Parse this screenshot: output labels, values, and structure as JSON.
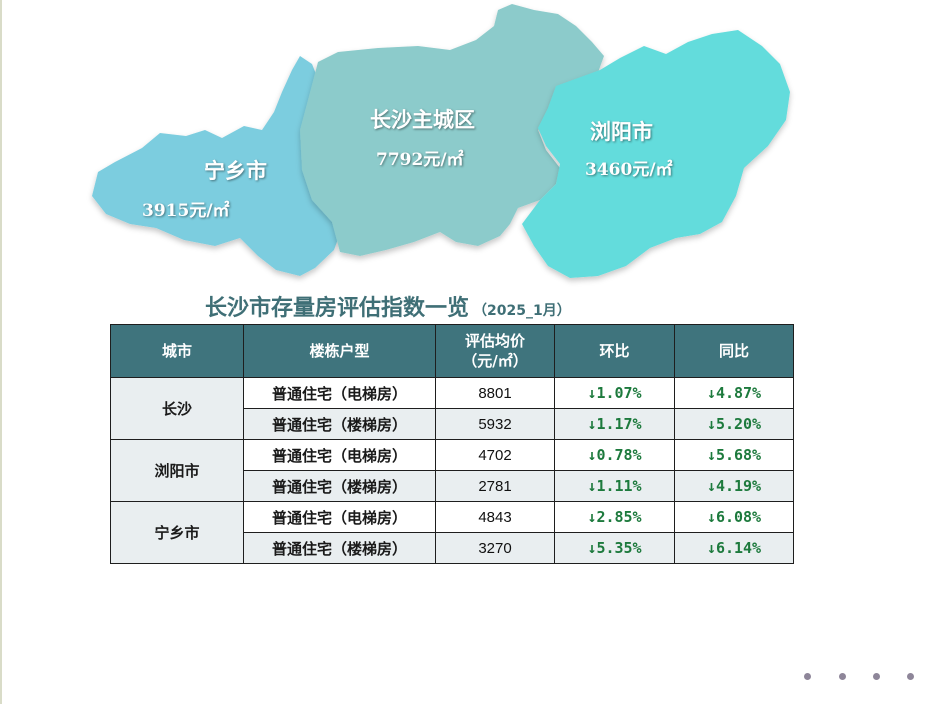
{
  "map": {
    "regions": [
      {
        "name": "宁乡市",
        "price": "3915元/㎡",
        "color": "#7ccddf"
      },
      {
        "name": "长沙主城区",
        "price": "7792元/㎡",
        "color": "#8ccbcb"
      },
      {
        "name": "浏阳市",
        "price": "3460元/㎡",
        "color": "#63dcdc"
      }
    ]
  },
  "title": {
    "main": "长沙市存量房评估指数一览",
    "sub": "（2025_1月）"
  },
  "table": {
    "headers": {
      "city": "城市",
      "type": "楼栋户型",
      "price_line1": "评估均价",
      "price_line2": "（元/㎡）",
      "mom": "环比",
      "yoy": "同比"
    },
    "arrow": "↓",
    "rows": [
      {
        "city": "长沙",
        "type": "普通住宅（电梯房）",
        "price": "8801",
        "mom": "1.07%",
        "yoy": "4.87%"
      },
      {
        "type": "普通住宅（楼梯房）",
        "price": "5932",
        "mom": "1.17%",
        "yoy": "5.20%"
      },
      {
        "city": "浏阳市",
        "type": "普通住宅（电梯房）",
        "price": "4702",
        "mom": "0.78%",
        "yoy": "5.68%"
      },
      {
        "type": "普通住宅（楼梯房）",
        "price": "2781",
        "mom": "1.11%",
        "yoy": "4.19%"
      },
      {
        "city": "宁乡市",
        "type": "普通住宅（电梯房）",
        "price": "4843",
        "mom": "2.85%",
        "yoy": "6.08%"
      },
      {
        "type": "普通住宅（楼梯房）",
        "price": "3270",
        "mom": "5.35%",
        "yoy": "6.14%"
      }
    ]
  },
  "colors": {
    "header_bg": "#3f747d",
    "title": "#3f6f76",
    "down_arrow": "#1d7a3d",
    "pagination_dot": "#8e8699"
  },
  "pagination": {
    "dots": 4
  }
}
